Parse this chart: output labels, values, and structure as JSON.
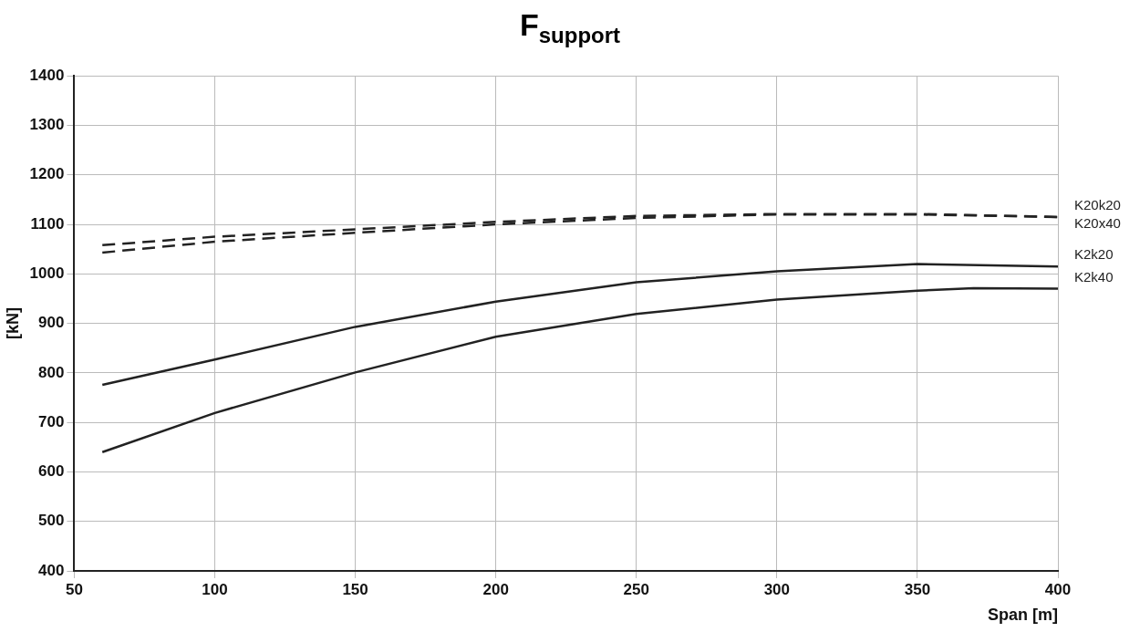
{
  "chart_data": {
    "type": "line",
    "title": "F$_{support}$",
    "xlabel": "Span [m]",
    "ylabel": "[kN]",
    "xlim": [
      50,
      400
    ],
    "xticks": [
      50,
      100,
      150,
      200,
      250,
      300,
      350,
      400
    ],
    "ylim": [
      400,
      1400
    ],
    "yticks": [
      400,
      500,
      600,
      700,
      800,
      900,
      1000,
      1100,
      1200,
      1300,
      1400
    ],
    "grid": true,
    "legend": false,
    "marker": "none",
    "series": [
      {
        "name": "K20k20",
        "color": "#222222",
        "line_style": "dashed",
        "x": [
          60,
          100,
          150,
          200,
          250,
          300,
          350,
          400
        ],
        "values": [
          1058,
          1075,
          1090,
          1105,
          1117,
          1121,
          1121,
          1115
        ]
      },
      {
        "name": "K20x40",
        "color": "#222222",
        "line_style": "dashed",
        "x": [
          60,
          100,
          150,
          200,
          250,
          300,
          350,
          400
        ],
        "values": [
          1043,
          1065,
          1083,
          1100,
          1113,
          1120,
          1120,
          1115
        ]
      },
      {
        "name": "K2k20",
        "color": "#222222",
        "line_style": "solid",
        "x": [
          60,
          100,
          150,
          200,
          250,
          300,
          350,
          400
        ],
        "values": [
          776,
          827,
          893,
          944,
          983,
          1005,
          1020,
          1015
        ]
      },
      {
        "name": "K2k40",
        "color": "#222222",
        "line_style": "solid",
        "x": [
          60,
          100,
          150,
          200,
          250,
          300,
          350,
          370,
          400
        ],
        "values": [
          640,
          719,
          801,
          873,
          919,
          948,
          966,
          971,
          970
        ]
      }
    ]
  }
}
